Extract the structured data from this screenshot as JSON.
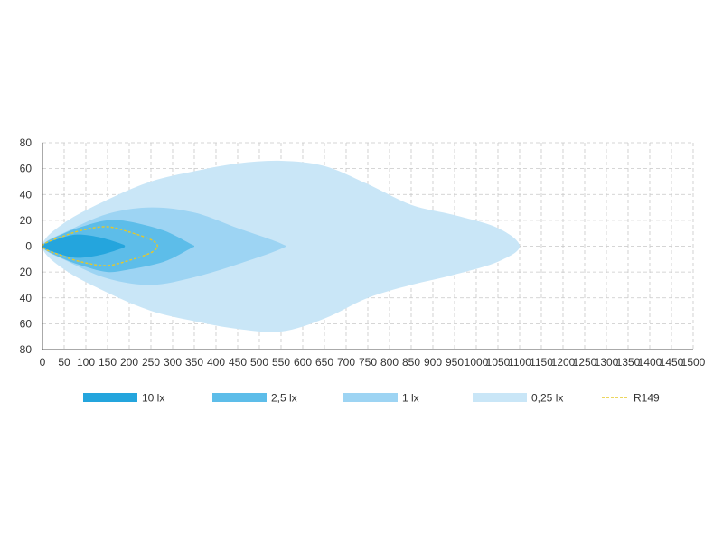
{
  "chart_data": {
    "type": "area",
    "title": "",
    "xlabel": "",
    "ylabel": "",
    "xlim": [
      0,
      1500
    ],
    "ylim": [
      -80,
      80
    ],
    "grid": true,
    "grid_style": "dashed",
    "legend_placement": "bottom",
    "x_ticks": [
      0,
      50,
      100,
      150,
      200,
      250,
      300,
      350,
      400,
      450,
      500,
      550,
      600,
      650,
      700,
      750,
      800,
      850,
      900,
      950,
      1000,
      1050,
      1100,
      1150,
      1200,
      1250,
      1300,
      1350,
      1400,
      1450,
      1500
    ],
    "x_tick_labels": [
      "0",
      "50",
      "100",
      "150",
      "200",
      "250",
      "300",
      "350",
      "400",
      "450",
      "500",
      "550",
      "600",
      "650",
      "700",
      "750",
      "800",
      "850",
      "900",
      "950",
      "1000",
      "1050",
      "1100",
      "1150",
      "1200",
      "1250",
      "1300",
      "1350",
      "1400",
      "1450",
      "1500"
    ],
    "y_ticks": [
      80,
      60,
      40,
      20,
      0,
      -20,
      -40,
      -60,
      -80
    ],
    "y_tick_labels": [
      "80",
      "60",
      "40",
      "20",
      "0",
      "20",
      "40",
      "60",
      "80"
    ],
    "series": [
      {
        "name": "0,25 lx",
        "color": "#c9e6f7",
        "style": "area",
        "points": [
          [
            0,
            0
          ],
          [
            50,
            18
          ],
          [
            150,
            36
          ],
          [
            250,
            50
          ],
          [
            350,
            58
          ],
          [
            450,
            64
          ],
          [
            550,
            66
          ],
          [
            650,
            62
          ],
          [
            750,
            48
          ],
          [
            850,
            32
          ],
          [
            950,
            24
          ],
          [
            1050,
            14
          ],
          [
            1100,
            0
          ],
          [
            1050,
            -12
          ],
          [
            950,
            -22
          ],
          [
            850,
            -30
          ],
          [
            750,
            -40
          ],
          [
            650,
            -56
          ],
          [
            550,
            -66
          ],
          [
            450,
            -64
          ],
          [
            350,
            -58
          ],
          [
            250,
            -50
          ],
          [
            150,
            -36
          ],
          [
            50,
            -18
          ]
        ]
      },
      {
        "name": "1 lx",
        "color": "#9dd4f3",
        "style": "area",
        "points": [
          [
            0,
            0
          ],
          [
            60,
            12
          ],
          [
            150,
            25
          ],
          [
            250,
            30
          ],
          [
            350,
            26
          ],
          [
            450,
            14
          ],
          [
            550,
            2
          ],
          [
            550,
            -2
          ],
          [
            450,
            -14
          ],
          [
            350,
            -24
          ],
          [
            250,
            -30
          ],
          [
            150,
            -25
          ],
          [
            60,
            -12
          ]
        ]
      },
      {
        "name": "2,5 lx",
        "color": "#5dbde9",
        "style": "area",
        "points": [
          [
            0,
            0
          ],
          [
            50,
            10
          ],
          [
            100,
            16
          ],
          [
            150,
            20
          ],
          [
            200,
            19
          ],
          [
            280,
            12
          ],
          [
            340,
            2
          ],
          [
            350,
            0
          ],
          [
            340,
            -2
          ],
          [
            280,
            -12
          ],
          [
            200,
            -18
          ],
          [
            150,
            -20
          ],
          [
            100,
            -16
          ],
          [
            50,
            -10
          ]
        ]
      },
      {
        "name": "10 lx",
        "color": "#24a5dd",
        "style": "area",
        "points": [
          [
            0,
            0
          ],
          [
            40,
            6
          ],
          [
            80,
            9
          ],
          [
            130,
            7
          ],
          [
            180,
            2
          ],
          [
            190,
            0
          ],
          [
            180,
            -2
          ],
          [
            130,
            -7
          ],
          [
            80,
            -9
          ],
          [
            40,
            -6
          ]
        ]
      },
      {
        "name": "R149",
        "color": "#e6c829",
        "style": "dashed-line",
        "points": [
          [
            0,
            0
          ],
          [
            50,
            8
          ],
          [
            100,
            13
          ],
          [
            150,
            15
          ],
          [
            200,
            11
          ],
          [
            250,
            5
          ],
          [
            265,
            0
          ],
          [
            250,
            -5
          ],
          [
            200,
            -11
          ],
          [
            150,
            -15
          ],
          [
            100,
            -13
          ],
          [
            50,
            -8
          ],
          [
            0,
            0
          ]
        ]
      }
    ],
    "legend": [
      {
        "label": "10 lx",
        "color": "#24a5dd",
        "style": "bar"
      },
      {
        "label": "2,5 lx",
        "color": "#5dbde9",
        "style": "bar"
      },
      {
        "label": "1 lx",
        "color": "#9dd4f3",
        "style": "bar"
      },
      {
        "label": "0,25 lx",
        "color": "#c9e6f7",
        "style": "bar"
      },
      {
        "label": "R149",
        "color": "#e6c829",
        "style": "dashed"
      }
    ]
  }
}
